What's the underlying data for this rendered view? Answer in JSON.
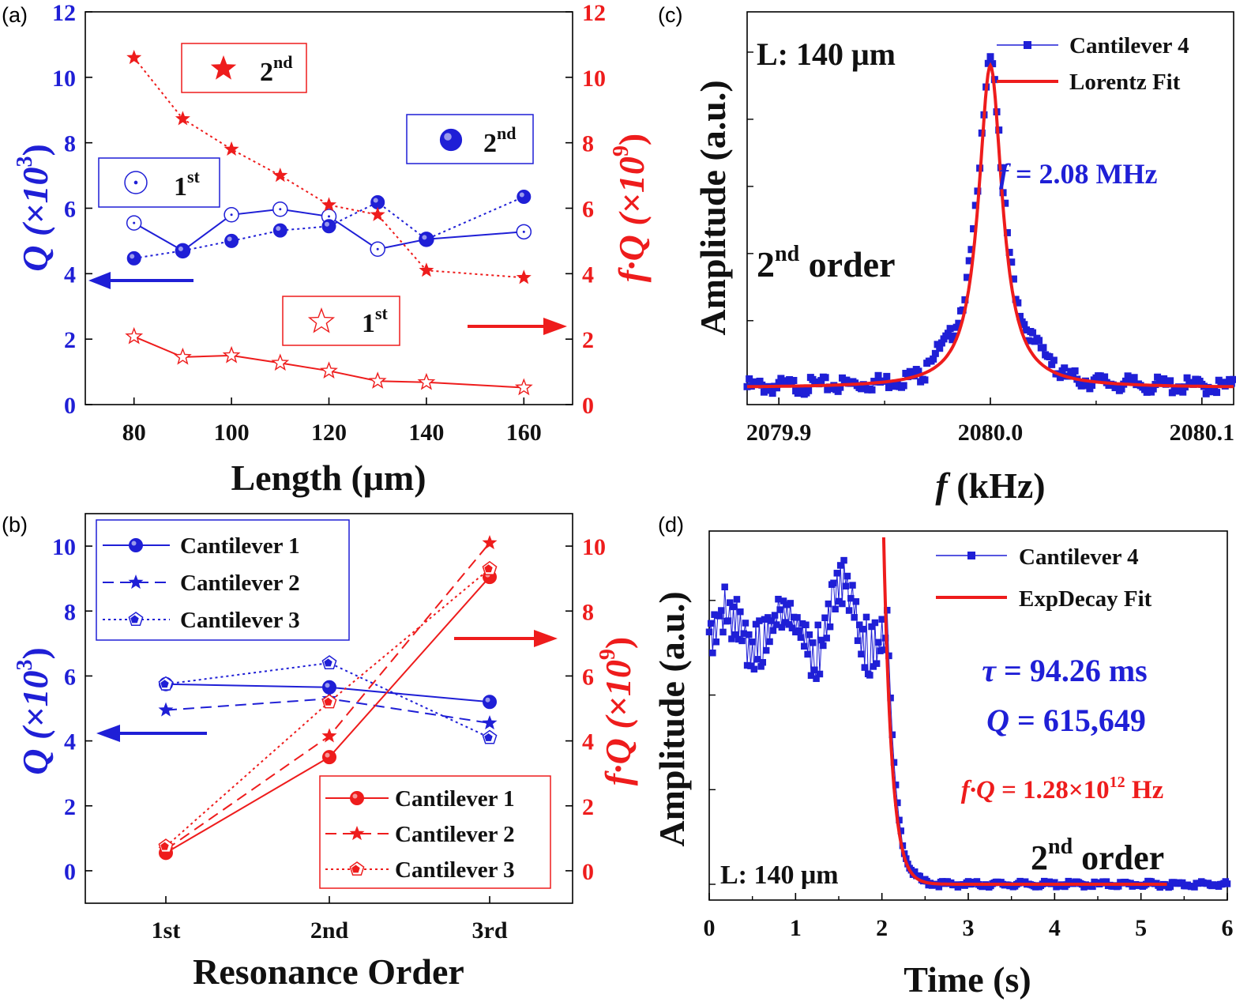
{
  "colors": {
    "blue": "#1f1fd6",
    "red": "#ee1c1c",
    "black": "#111111"
  },
  "panel_labels": [
    "(a)",
    "(b)",
    "(c)",
    "(d)"
  ],
  "chart_data": [
    {
      "panel": "(a)",
      "type": "line",
      "xlabel": "Length (μm)",
      "ylabel_left": "Q (×10",
      "ylabel_left_sup": "3",
      "ylabel_right": "f·Q (×10",
      "ylabel_right_sup": "9",
      "xlim": [
        70,
        170
      ],
      "xticks": [
        80,
        100,
        120,
        140,
        160
      ],
      "ylim_left": [
        0,
        12
      ],
      "ylim_right": [
        0,
        12
      ],
      "yticks_left": [
        0,
        2,
        4,
        6,
        8,
        10,
        12
      ],
      "yticks_right": [
        0,
        2,
        4,
        6,
        8,
        10,
        12
      ],
      "x": [
        80,
        90,
        100,
        110,
        120,
        130,
        140,
        160
      ],
      "series": [
        {
          "name": "Q 1st",
          "axis": "left",
          "color": "blue",
          "dash": "",
          "marker": "open-circle",
          "values": [
            5.55,
            4.7,
            5.8,
            5.97,
            5.75,
            4.75,
            5.05,
            5.28
          ]
        },
        {
          "name": "Q 2nd",
          "axis": "left",
          "color": "blue",
          "dash": "dot",
          "marker": "filled-circle",
          "values": [
            4.47,
            4.7,
            5.0,
            5.32,
            5.45,
            6.18,
            5.05,
            6.35
          ]
        },
        {
          "name": "fQ 2nd",
          "axis": "right",
          "color": "red",
          "dash": "dot",
          "marker": "filled-star",
          "values": [
            10.6,
            8.73,
            7.8,
            7.0,
            6.1,
            5.8,
            4.1,
            3.88
          ]
        },
        {
          "name": "fQ 1st",
          "axis": "right",
          "color": "red",
          "dash": "",
          "marker": "open-star",
          "values": [
            2.08,
            1.45,
            1.5,
            1.27,
            1.03,
            0.72,
            0.68,
            0.52
          ]
        }
      ],
      "annotations": [
        {
          "text": "2",
          "sup": "nd",
          "marker": "filled-star",
          "color": "red"
        },
        {
          "text": "2",
          "sup": "nd",
          "marker": "filled-circle",
          "color": "blue"
        },
        {
          "text": "1",
          "sup": "st",
          "marker": "open-circle",
          "color": "blue"
        },
        {
          "text": "1",
          "sup": "st",
          "marker": "open-star",
          "color": "red"
        }
      ]
    },
    {
      "panel": "(b)",
      "type": "line",
      "xlabel": "Resonance Order",
      "ylabel_left": "Q (×10",
      "ylabel_left_sup": "3",
      "ylabel_right": "f·Q (×10",
      "ylabel_right_sup": "9",
      "categories": [
        "1st",
        "2nd",
        "3rd"
      ],
      "ylim_left": [
        -1,
        11
      ],
      "ylim_right": [
        -1,
        11
      ],
      "yticks_left": [
        0,
        2,
        4,
        6,
        8,
        10
      ],
      "yticks_right": [
        0,
        2,
        4,
        6,
        8,
        10
      ],
      "series": [
        {
          "name": "Cantilever 1",
          "axis": "left",
          "color": "blue",
          "dash": "",
          "marker": "circle",
          "values": [
            5.75,
            5.65,
            5.2
          ]
        },
        {
          "name": "Cantilever 2",
          "axis": "left",
          "color": "blue",
          "dash": "dash",
          "marker": "star",
          "values": [
            4.95,
            5.3,
            4.55
          ]
        },
        {
          "name": "Cantilever 3",
          "axis": "left",
          "color": "blue",
          "dash": "dot",
          "marker": "pentagon",
          "values": [
            5.75,
            6.4,
            4.1
          ]
        },
        {
          "name": "Cantilever 1",
          "axis": "right",
          "color": "red",
          "dash": "",
          "marker": "circle",
          "values": [
            0.55,
            3.5,
            9.05
          ]
        },
        {
          "name": "Cantilever 2",
          "axis": "right",
          "color": "red",
          "dash": "dash",
          "marker": "star",
          "values": [
            0.65,
            4.15,
            10.1
          ]
        },
        {
          "name": "Cantilever 3",
          "axis": "right",
          "color": "red",
          "dash": "dot",
          "marker": "pentagon",
          "values": [
            0.75,
            5.2,
            9.3
          ]
        }
      ]
    },
    {
      "panel": "(c)",
      "type": "scatter",
      "xlabel_italic": "f",
      "xlabel": " (kHz)",
      "ylabel": "Amplitude (a.u.)",
      "xlim": [
        2079.885,
        2080.115
      ],
      "xticks": [
        2079.9,
        2080.0,
        2080.1
      ],
      "xtick_labels": [
        "2079.9",
        "2080.0",
        "2080.1"
      ],
      "ylim": [
        -0.05,
        1.12
      ],
      "series": [
        {
          "name": "Cantilever 4",
          "color": "blue",
          "marker": "square",
          "model": "lorentzian",
          "center": 2080.0,
          "hwhm": 0.0068,
          "baseline": 0.0,
          "amplitude": 1.0
        },
        {
          "name": "Lorentz Fit",
          "color": "red",
          "model": "lorentzian",
          "center": 2080.0,
          "hwhm": 0.0068,
          "baseline": 0.0,
          "amplitude": 0.96
        }
      ],
      "annotations": {
        "length": "L: 140 μm",
        "order": "2",
        "order_sup": "nd",
        "order_word": " order",
        "freq_italic": "f",
        "freq": " = 2.08 MHz"
      }
    },
    {
      "panel": "(d)",
      "type": "scatter",
      "xlabel": "Time (s)",
      "ylabel": "Amplitude (a.u.)",
      "xlim": [
        0,
        6
      ],
      "xticks": [
        0,
        1,
        2,
        3,
        4,
        5,
        6
      ],
      "ylim": [
        -0.05,
        1.12
      ],
      "series": [
        {
          "name": "Cantilever 4",
          "color": "blue",
          "marker": "square",
          "pre_level": 0.8,
          "drop_time": 2.07,
          "tau": 0.09426,
          "baseline": 0.0
        },
        {
          "name": "ExpDecay Fit",
          "color": "red",
          "start": 2.02,
          "end": 5.3,
          "start_level": 1.1,
          "tau": 0.09426,
          "baseline": 0.0
        }
      ],
      "annotations": {
        "tau_italic": "τ",
        "tau": " = 94.26 ms",
        "q_italic": "Q",
        "q": " = 615,649",
        "fq_italic": "f·Q",
        "fq": " = 1.28×10",
        "fq_sup": "12",
        "fq_unit": " Hz",
        "length": "L: 140 μm",
        "order": "2",
        "order_sup": "nd",
        "order_word": " order"
      }
    }
  ]
}
